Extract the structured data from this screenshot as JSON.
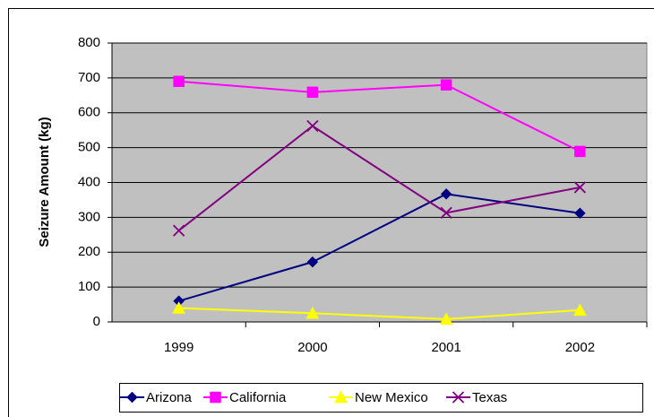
{
  "chart_data": {
    "type": "line",
    "y_label": "Seizure Amount (kg)",
    "categories": [
      "1999",
      "2000",
      "2001",
      "2002"
    ],
    "series": [
      {
        "name": "Arizona",
        "color": "#000080",
        "marker": "diamond",
        "values": [
          60,
          172,
          367,
          312
        ]
      },
      {
        "name": "California",
        "color": "#FF00FF",
        "marker": "square",
        "values": [
          690,
          659,
          680,
          489
        ]
      },
      {
        "name": "New Mexico",
        "color": "#FFFF00",
        "marker": "triangle",
        "values": [
          40,
          25,
          8,
          34
        ]
      },
      {
        "name": "Texas",
        "color": "#800080",
        "marker": "x",
        "values": [
          262,
          562,
          313,
          386
        ]
      }
    ],
    "ylim": [
      0,
      800
    ],
    "yticks": [
      0,
      100,
      200,
      300,
      400,
      500,
      600,
      700,
      800
    ],
    "grid": true,
    "legend": "bottom",
    "plot_background": "#C0C0C0"
  }
}
